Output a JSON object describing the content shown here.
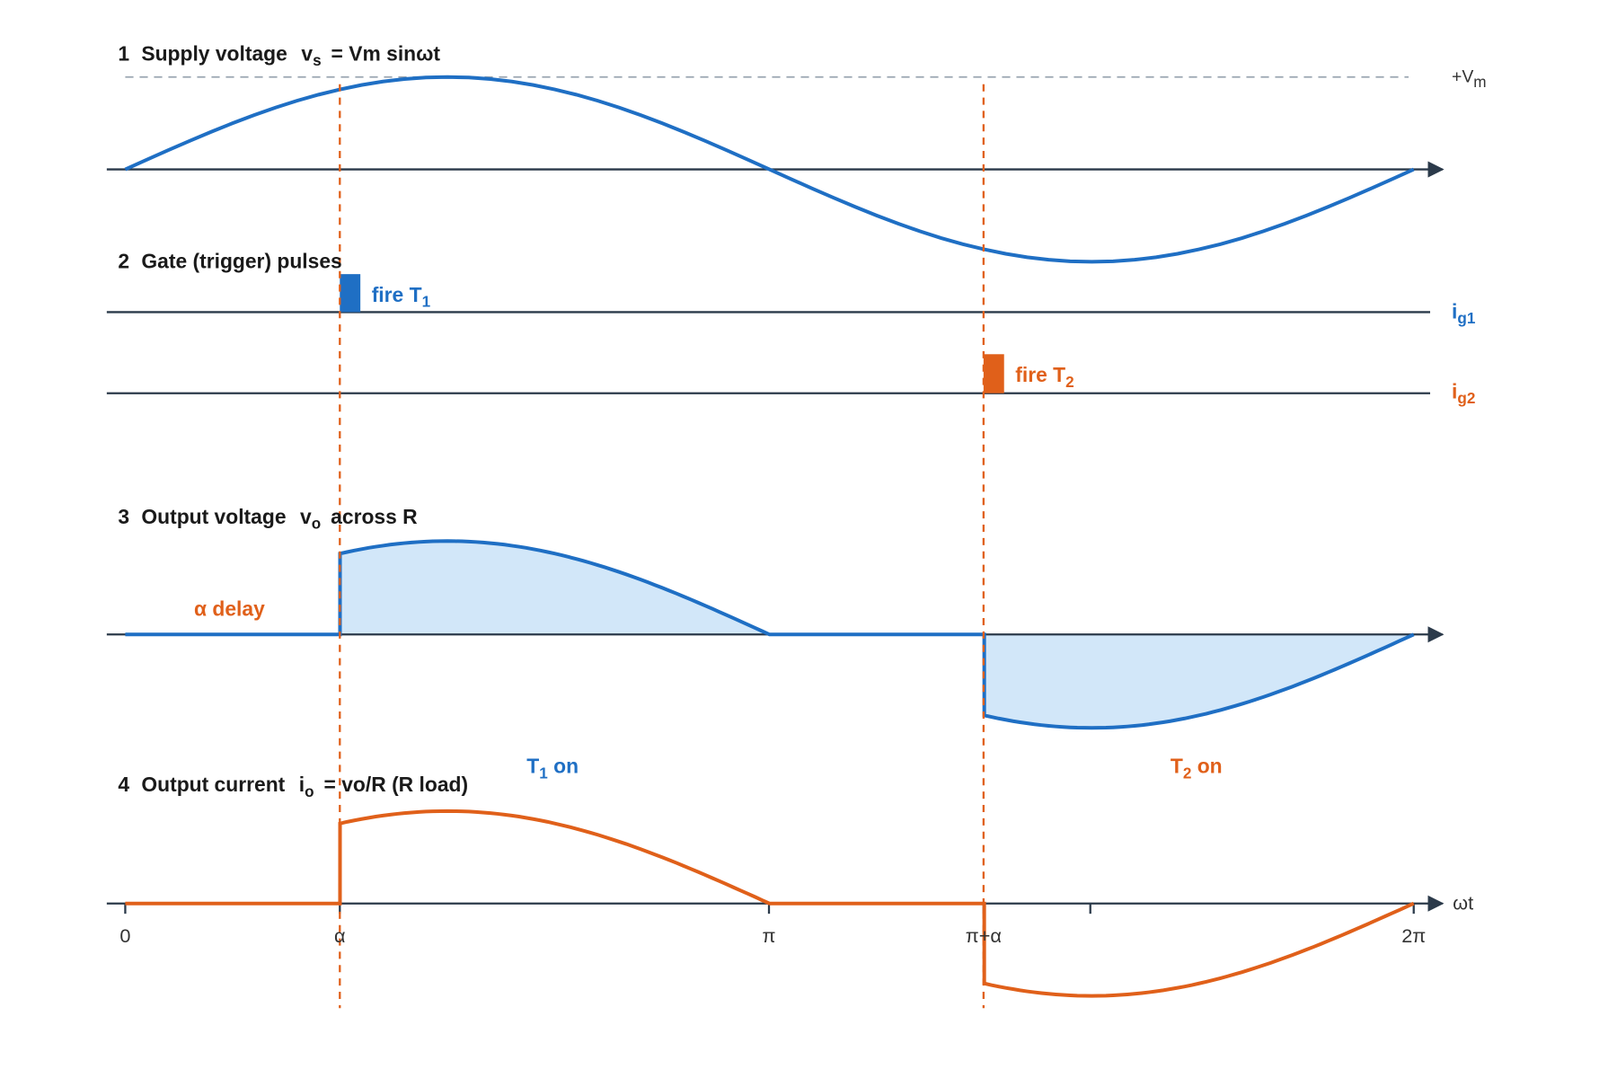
{
  "panels": [
    {
      "number": "1",
      "title": "Supply voltage",
      "symbol": "v",
      "subscript": "s",
      "expression": "= Vm sinωt"
    },
    {
      "number": "2",
      "title": "Gate (trigger) pulses"
    },
    {
      "number": "3",
      "title": "Output voltage",
      "symbol": "v",
      "subscript": "o",
      "expression": "across R"
    },
    {
      "number": "4",
      "title": "Output current",
      "symbol": "i",
      "subscript": "o",
      "expression": "= vo/R  (R load)"
    }
  ],
  "peak_label": {
    "text": "+V",
    "subscript": "m"
  },
  "pulses": [
    {
      "text": "fire T",
      "subscript": "1",
      "signal": "i",
      "signal_subscript": "g1"
    },
    {
      "text": "fire T",
      "subscript": "2",
      "signal": "i",
      "signal_subscript": "g2"
    }
  ],
  "delay_label": "α delay",
  "conduction": [
    {
      "text": "T",
      "subscript": "1",
      "suffix": " on"
    },
    {
      "text": "T",
      "subscript": "2",
      "suffix": " on"
    }
  ],
  "axis": {
    "ticks": [
      "0",
      "α",
      "π",
      "π+α",
      "2π"
    ],
    "label": "ωt"
  }
}
